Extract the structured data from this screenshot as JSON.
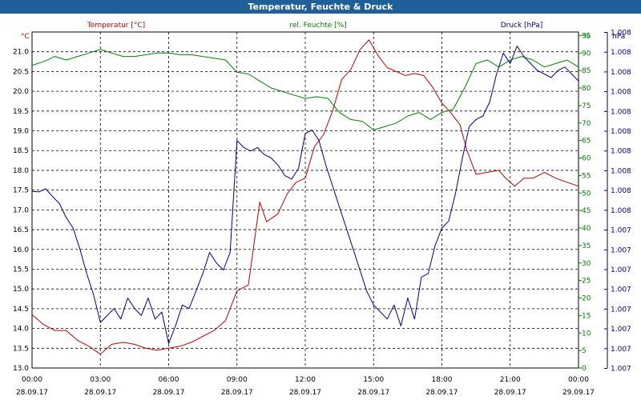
{
  "window": {
    "title": "Temperatur, Feuchte & Druck"
  },
  "chart_data": {
    "type": "line",
    "title": "Temperatur, Feuchte & Druck",
    "grid": true,
    "legend_placement": "top",
    "x": {
      "ticks": [
        {
          "time": "00:00",
          "date": "28.09.17"
        },
        {
          "time": "03:00",
          "date": "28.09.17"
        },
        {
          "time": "06:00",
          "date": "28.09.17"
        },
        {
          "time": "09:00",
          "date": "28.09.17"
        },
        {
          "time": "12:00",
          "date": "28.09.17"
        },
        {
          "time": "15:00",
          "date": "28.09.17"
        },
        {
          "time": "18:00",
          "date": "28.09.17"
        },
        {
          "time": "21:00",
          "date": "28.09.17"
        },
        {
          "time": "00:00",
          "date": "29.09.17"
        }
      ],
      "range_hours": [
        0,
        24
      ]
    },
    "axes": {
      "temperature": {
        "unit": "°C",
        "label": "Temperatur [°C]",
        "color": "#c00000",
        "ylim": [
          13.0,
          21.5
        ],
        "ticks": [
          "13.0",
          "13.5",
          "14.0",
          "14.5",
          "15.0",
          "15.5",
          "16.0",
          "16.5",
          "17.0",
          "17.5",
          "18.0",
          "18.5",
          "19.0",
          "19.5",
          "20.0",
          "20.5",
          "21.0"
        ]
      },
      "humidity": {
        "unit": "%",
        "label": "rel. Feuchte [%]",
        "color": "#008000",
        "ylim": [
          0,
          96
        ],
        "ticks": [
          "0",
          "5",
          "10",
          "15",
          "20",
          "25",
          "30",
          "35",
          "40",
          "45",
          "50",
          "55",
          "60",
          "65",
          "70",
          "75",
          "80",
          "85",
          "90",
          "95"
        ]
      },
      "pressure": {
        "unit": "hPa",
        "label": "Druck [hPa]",
        "color": "#000080",
        "ticks": [
          "1.007",
          "1.007",
          "1.007",
          "1.007",
          "1.007",
          "1.007",
          "1.007",
          "1.007",
          "1.008",
          "1.008",
          "1.008",
          "1.008",
          "1.008",
          "1.008",
          "1.008",
          "1.008",
          "1.008",
          "1.008"
        ]
      }
    },
    "series": [
      {
        "name": "Temperatur [°C]",
        "axis": "temperature",
        "color": "#c00000",
        "points": [
          [
            0,
            14.35
          ],
          [
            0.5,
            14.1
          ],
          [
            1,
            13.95
          ],
          [
            1.5,
            13.95
          ],
          [
            2,
            13.7
          ],
          [
            2.5,
            13.55
          ],
          [
            3,
            13.35
          ],
          [
            3.5,
            13.6
          ],
          [
            4,
            13.65
          ],
          [
            4.5,
            13.6
          ],
          [
            5,
            13.5
          ],
          [
            5.5,
            13.45
          ],
          [
            6,
            13.5
          ],
          [
            6.5,
            13.55
          ],
          [
            7,
            13.65
          ],
          [
            7.5,
            13.8
          ],
          [
            8,
            13.95
          ],
          [
            8.5,
            14.2
          ],
          [
            9,
            14.95
          ],
          [
            9.5,
            15.1
          ],
          [
            10,
            17.2
          ],
          [
            10.3,
            16.7
          ],
          [
            10.8,
            16.9
          ],
          [
            11.2,
            17.4
          ],
          [
            11.6,
            17.7
          ],
          [
            12,
            17.8
          ],
          [
            12.4,
            18.6
          ],
          [
            12.8,
            18.9
          ],
          [
            13.2,
            19.5
          ],
          [
            13.6,
            20.3
          ],
          [
            14,
            20.55
          ],
          [
            14.4,
            21.05
          ],
          [
            14.8,
            21.3
          ],
          [
            15.2,
            20.9
          ],
          [
            15.6,
            20.6
          ],
          [
            16,
            20.5
          ],
          [
            16.4,
            20.4
          ],
          [
            16.8,
            20.45
          ],
          [
            17.2,
            20.4
          ],
          [
            17.6,
            20.1
          ],
          [
            18,
            19.7
          ],
          [
            18.4,
            19.45
          ],
          [
            18.8,
            19.15
          ],
          [
            19.1,
            18.5
          ],
          [
            19.5,
            17.9
          ],
          [
            20,
            17.95
          ],
          [
            20.5,
            18.0
          ],
          [
            20.8,
            17.8
          ],
          [
            21.2,
            17.6
          ],
          [
            21.6,
            17.8
          ],
          [
            22,
            17.8
          ],
          [
            22.5,
            17.95
          ],
          [
            23,
            17.8
          ],
          [
            23.5,
            17.7
          ],
          [
            24,
            17.6
          ]
        ]
      },
      {
        "name": "rel. Feuchte [%]",
        "axis": "humidity",
        "color": "#008000",
        "points": [
          [
            0,
            86.5
          ],
          [
            0.5,
            87.5
          ],
          [
            1,
            89
          ],
          [
            1.5,
            88
          ],
          [
            2,
            89
          ],
          [
            2.5,
            90
          ],
          [
            3,
            91
          ],
          [
            3.5,
            90
          ],
          [
            4,
            89
          ],
          [
            4.5,
            89
          ],
          [
            5,
            89.5
          ],
          [
            5.5,
            90
          ],
          [
            6,
            90
          ],
          [
            6.5,
            89.5
          ],
          [
            7,
            89.5
          ],
          [
            7.5,
            89
          ],
          [
            8,
            88.5
          ],
          [
            8.5,
            88
          ],
          [
            9,
            84.5
          ],
          [
            9.5,
            84
          ],
          [
            10,
            82
          ],
          [
            10.5,
            80
          ],
          [
            11,
            79
          ],
          [
            11.5,
            78
          ],
          [
            12,
            77
          ],
          [
            12.5,
            77.5
          ],
          [
            13,
            77
          ],
          [
            13.5,
            73
          ],
          [
            14,
            71
          ],
          [
            14.5,
            70.5
          ],
          [
            15,
            68
          ],
          [
            15.5,
            69
          ],
          [
            16,
            70
          ],
          [
            16.5,
            72
          ],
          [
            17,
            73
          ],
          [
            17.5,
            71
          ],
          [
            18,
            73
          ],
          [
            18.5,
            74
          ],
          [
            19,
            80
          ],
          [
            19.5,
            87
          ],
          [
            20,
            88
          ],
          [
            20.5,
            86
          ],
          [
            21,
            88
          ],
          [
            21.5,
            89
          ],
          [
            22,
            88
          ],
          [
            22.5,
            86
          ],
          [
            23,
            87
          ],
          [
            23.5,
            88
          ],
          [
            24,
            86
          ]
        ]
      },
      {
        "name": "Druck [hPa]",
        "axis": "pressure",
        "color": "#000080",
        "points": [
          [
            0,
            50.5
          ],
          [
            0.3,
            50.3
          ],
          [
            0.6,
            51.2
          ],
          [
            0.9,
            49
          ],
          [
            1.2,
            47
          ],
          [
            1.5,
            43
          ],
          [
            1.8,
            40
          ],
          [
            2.1,
            34
          ],
          [
            2.4,
            27
          ],
          [
            2.7,
            21
          ],
          [
            3,
            13
          ],
          [
            3.3,
            15
          ],
          [
            3.6,
            17
          ],
          [
            3.9,
            14
          ],
          [
            4.2,
            20
          ],
          [
            4.5,
            17
          ],
          [
            4.8,
            15
          ],
          [
            5.1,
            20
          ],
          [
            5.4,
            14
          ],
          [
            5.7,
            16
          ],
          [
            6,
            7
          ],
          [
            6.3,
            12
          ],
          [
            6.6,
            18
          ],
          [
            6.9,
            17
          ],
          [
            7.2,
            22
          ],
          [
            7.5,
            27
          ],
          [
            7.8,
            33
          ],
          [
            8.1,
            30
          ],
          [
            8.4,
            28
          ],
          [
            8.7,
            33
          ],
          [
            9,
            65
          ],
          [
            9.3,
            63
          ],
          [
            9.6,
            62
          ],
          [
            9.9,
            63
          ],
          [
            10.2,
            61
          ],
          [
            10.5,
            60
          ],
          [
            10.8,
            58
          ],
          [
            11.1,
            55
          ],
          [
            11.4,
            54
          ],
          [
            11.7,
            57
          ],
          [
            12,
            67
          ],
          [
            12.3,
            68
          ],
          [
            12.6,
            65
          ],
          [
            12.9,
            58
          ],
          [
            13.2,
            52
          ],
          [
            13.5,
            46
          ],
          [
            13.8,
            40
          ],
          [
            14.1,
            34
          ],
          [
            14.4,
            28
          ],
          [
            14.7,
            22
          ],
          [
            15,
            18
          ],
          [
            15.3,
            16
          ],
          [
            15.6,
            14
          ],
          [
            15.9,
            18
          ],
          [
            16.2,
            12
          ],
          [
            16.5,
            20
          ],
          [
            16.8,
            14
          ],
          [
            17.1,
            26
          ],
          [
            17.4,
            27
          ],
          [
            17.7,
            35
          ],
          [
            18,
            40
          ],
          [
            18.3,
            42
          ],
          [
            18.6,
            50
          ],
          [
            18.9,
            60
          ],
          [
            19.2,
            69
          ],
          [
            19.5,
            71
          ],
          [
            19.8,
            72
          ],
          [
            20.1,
            76
          ],
          [
            20.4,
            84
          ],
          [
            20.7,
            90
          ],
          [
            21,
            87
          ],
          [
            21.3,
            92
          ],
          [
            21.6,
            89
          ],
          [
            21.9,
            87
          ],
          [
            22.2,
            85
          ],
          [
            22.5,
            84
          ],
          [
            22.8,
            83
          ],
          [
            23.1,
            85
          ],
          [
            23.4,
            86
          ],
          [
            23.7,
            84
          ],
          [
            24,
            82
          ]
        ]
      }
    ]
  }
}
